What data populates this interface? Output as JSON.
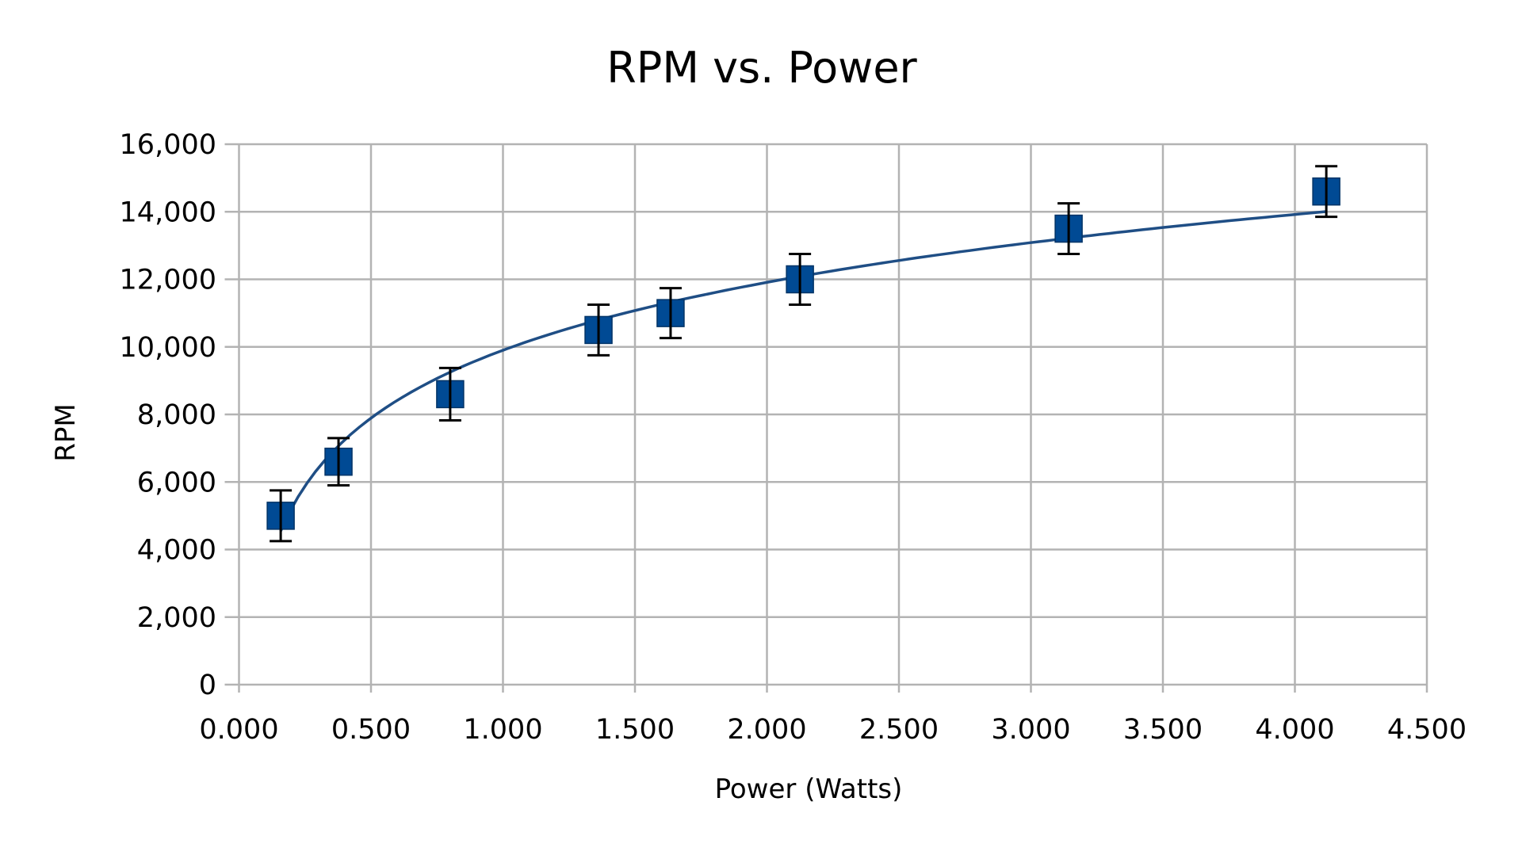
{
  "chart_data": {
    "type": "scatter",
    "title": "RPM vs. Power",
    "xlabel": "Power (Watts)",
    "ylabel": "RPM",
    "xlim": [
      0,
      4.5
    ],
    "ylim": [
      0,
      16000
    ],
    "x_ticks": [
      0,
      0.5,
      1.0,
      1.5,
      2.0,
      2.5,
      3.0,
      3.5,
      4.0,
      4.5
    ],
    "x_tick_labels": [
      "0.000",
      "0.500",
      "1.000",
      "1.500",
      "2.000",
      "2.500",
      "3.000",
      "3.500",
      "4.000",
      "4.500"
    ],
    "y_ticks": [
      0,
      2000,
      4000,
      6000,
      8000,
      10000,
      12000,
      14000,
      16000
    ],
    "y_tick_labels": [
      "0",
      "2,000",
      "4,000",
      "6,000",
      "8,000",
      "10,000",
      "12,000",
      "14,000",
      "16,000"
    ],
    "grid": true,
    "legend": null,
    "series": [
      {
        "name": "RPM",
        "marker": "square",
        "color": "#004a94",
        "x": [
          0.158,
          0.377,
          0.8,
          1.362,
          1.635,
          2.125,
          3.143,
          4.119
        ],
        "y": [
          5000,
          6600,
          8600,
          10500,
          11000,
          12000,
          13500,
          14600
        ],
        "y_error": [
          750,
          700,
          775,
          750,
          740,
          750,
          750,
          750
        ]
      }
    ],
    "trendline": {
      "type": "logarithmic",
      "equation": "RPM = 9900 + 2900*ln(P)",
      "a": 9900,
      "b": 2900,
      "x_start": 0.158,
      "x_end": 4.119,
      "color": "#1f4e85"
    }
  }
}
